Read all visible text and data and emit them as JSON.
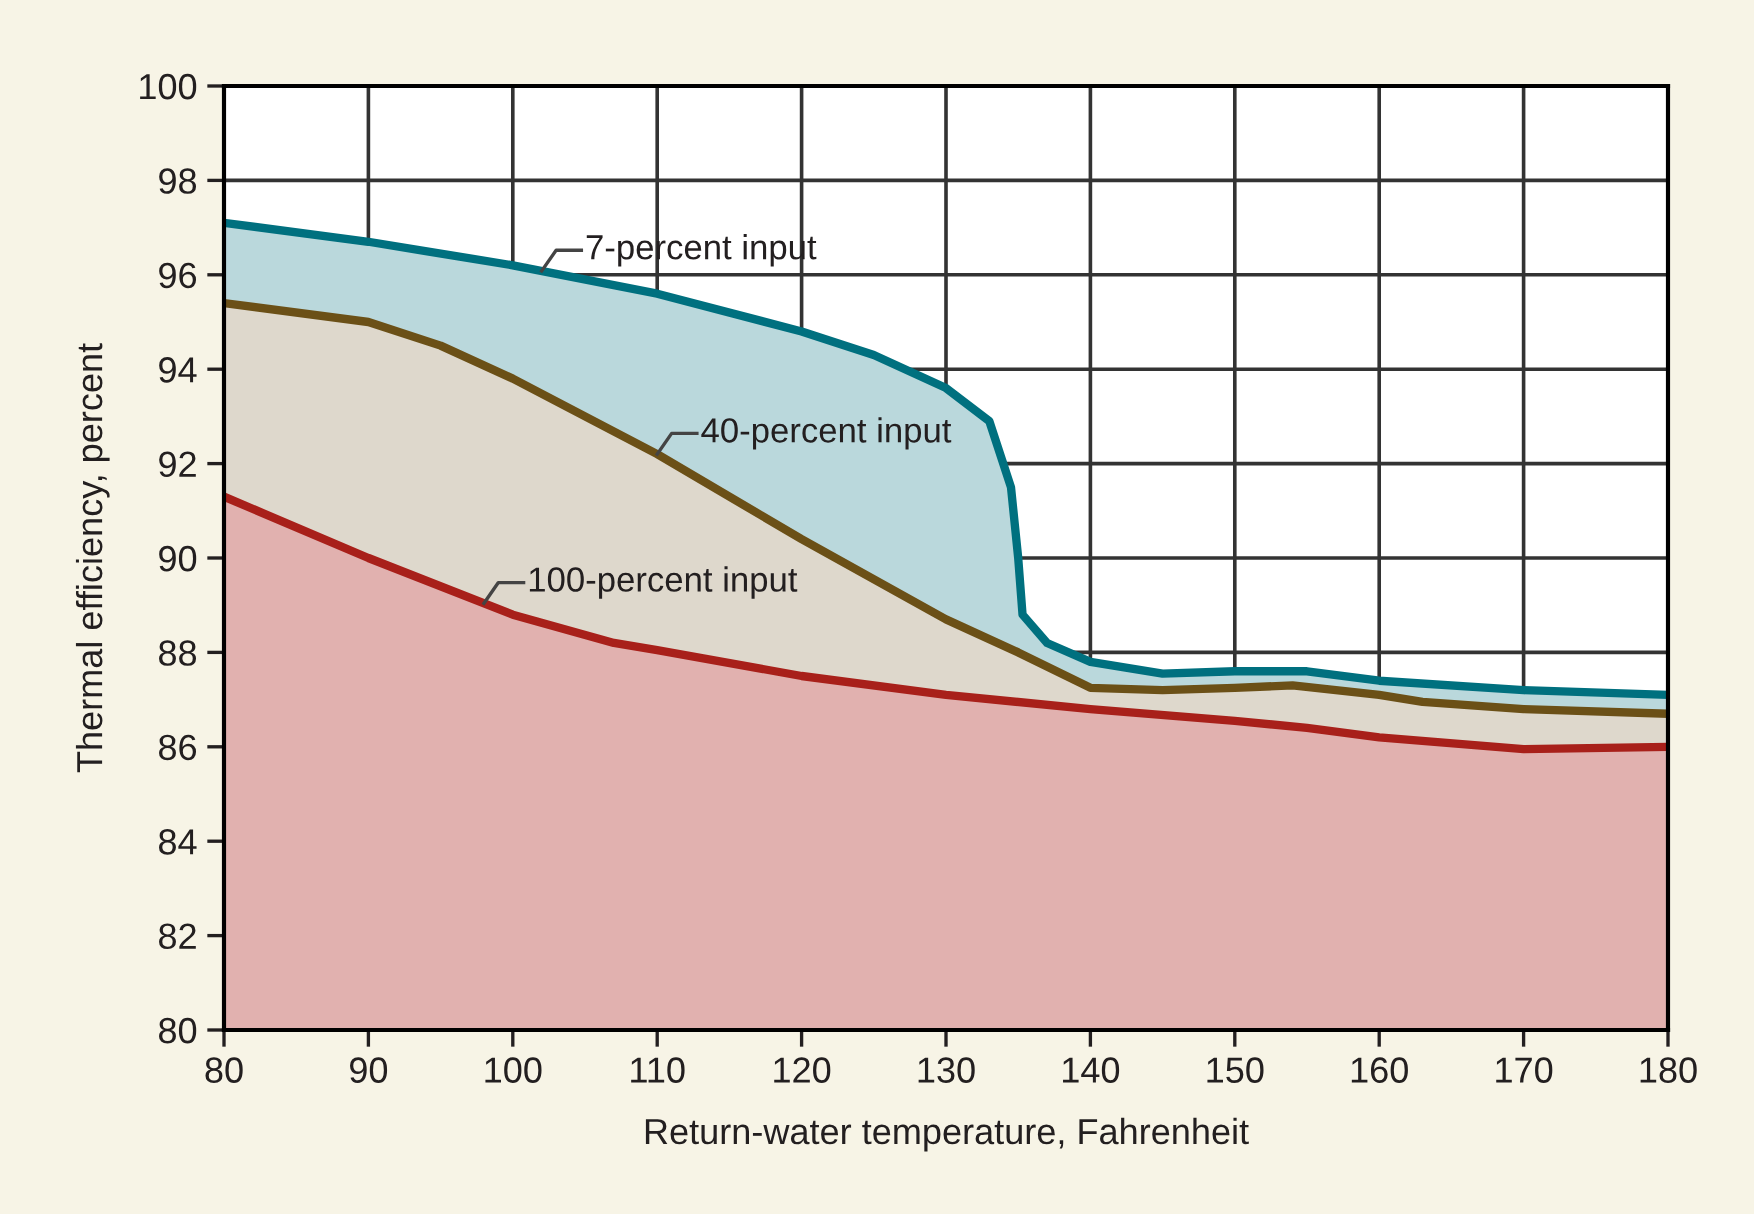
{
  "chart_data": {
    "type": "area",
    "xlabel": "Return-water temperature, Fahrenheit",
    "ylabel": "Thermal efficiency, percent",
    "xlim": [
      80,
      180
    ],
    "xticks": [
      80,
      90,
      100,
      110,
      120,
      130,
      140,
      150,
      160,
      170,
      180
    ],
    "ylim": [
      80,
      100
    ],
    "yticks": [
      80,
      82,
      84,
      86,
      88,
      90,
      92,
      94,
      96,
      98,
      100
    ],
    "grid": true,
    "legend": false,
    "series": [
      {
        "name": "7-percent input",
        "color": "#00707f",
        "x": [
          80,
          90,
          100,
          110,
          120,
          125,
          130,
          133,
          134.5,
          135,
          135.3,
          137,
          140,
          145,
          150,
          155,
          160,
          170,
          180
        ],
        "values": [
          97.1,
          96.7,
          96.2,
          95.6,
          94.8,
          94.3,
          93.6,
          92.9,
          91.5,
          90.0,
          88.8,
          88.2,
          87.8,
          87.55,
          87.6,
          87.6,
          87.4,
          87.2,
          87.1
        ]
      },
      {
        "name": "40-percent input",
        "color": "#6b5017",
        "x": [
          80,
          90,
          95,
          100,
          110,
          120,
          130,
          135,
          140,
          145,
          150,
          154,
          160,
          163,
          170,
          180
        ],
        "values": [
          95.4,
          95.0,
          94.5,
          93.8,
          92.2,
          90.4,
          88.7,
          88.0,
          87.25,
          87.2,
          87.25,
          87.3,
          87.1,
          86.95,
          86.8,
          86.7
        ]
      },
      {
        "name": "100-percent input",
        "color": "#a8201a",
        "x": [
          80,
          90,
          100,
          107,
          110,
          120,
          130,
          140,
          150,
          155,
          160,
          170,
          180
        ],
        "values": [
          91.3,
          90.0,
          88.8,
          88.2,
          88.05,
          87.5,
          87.1,
          86.8,
          86.55,
          86.4,
          86.2,
          85.95,
          86.0
        ]
      }
    ]
  }
}
